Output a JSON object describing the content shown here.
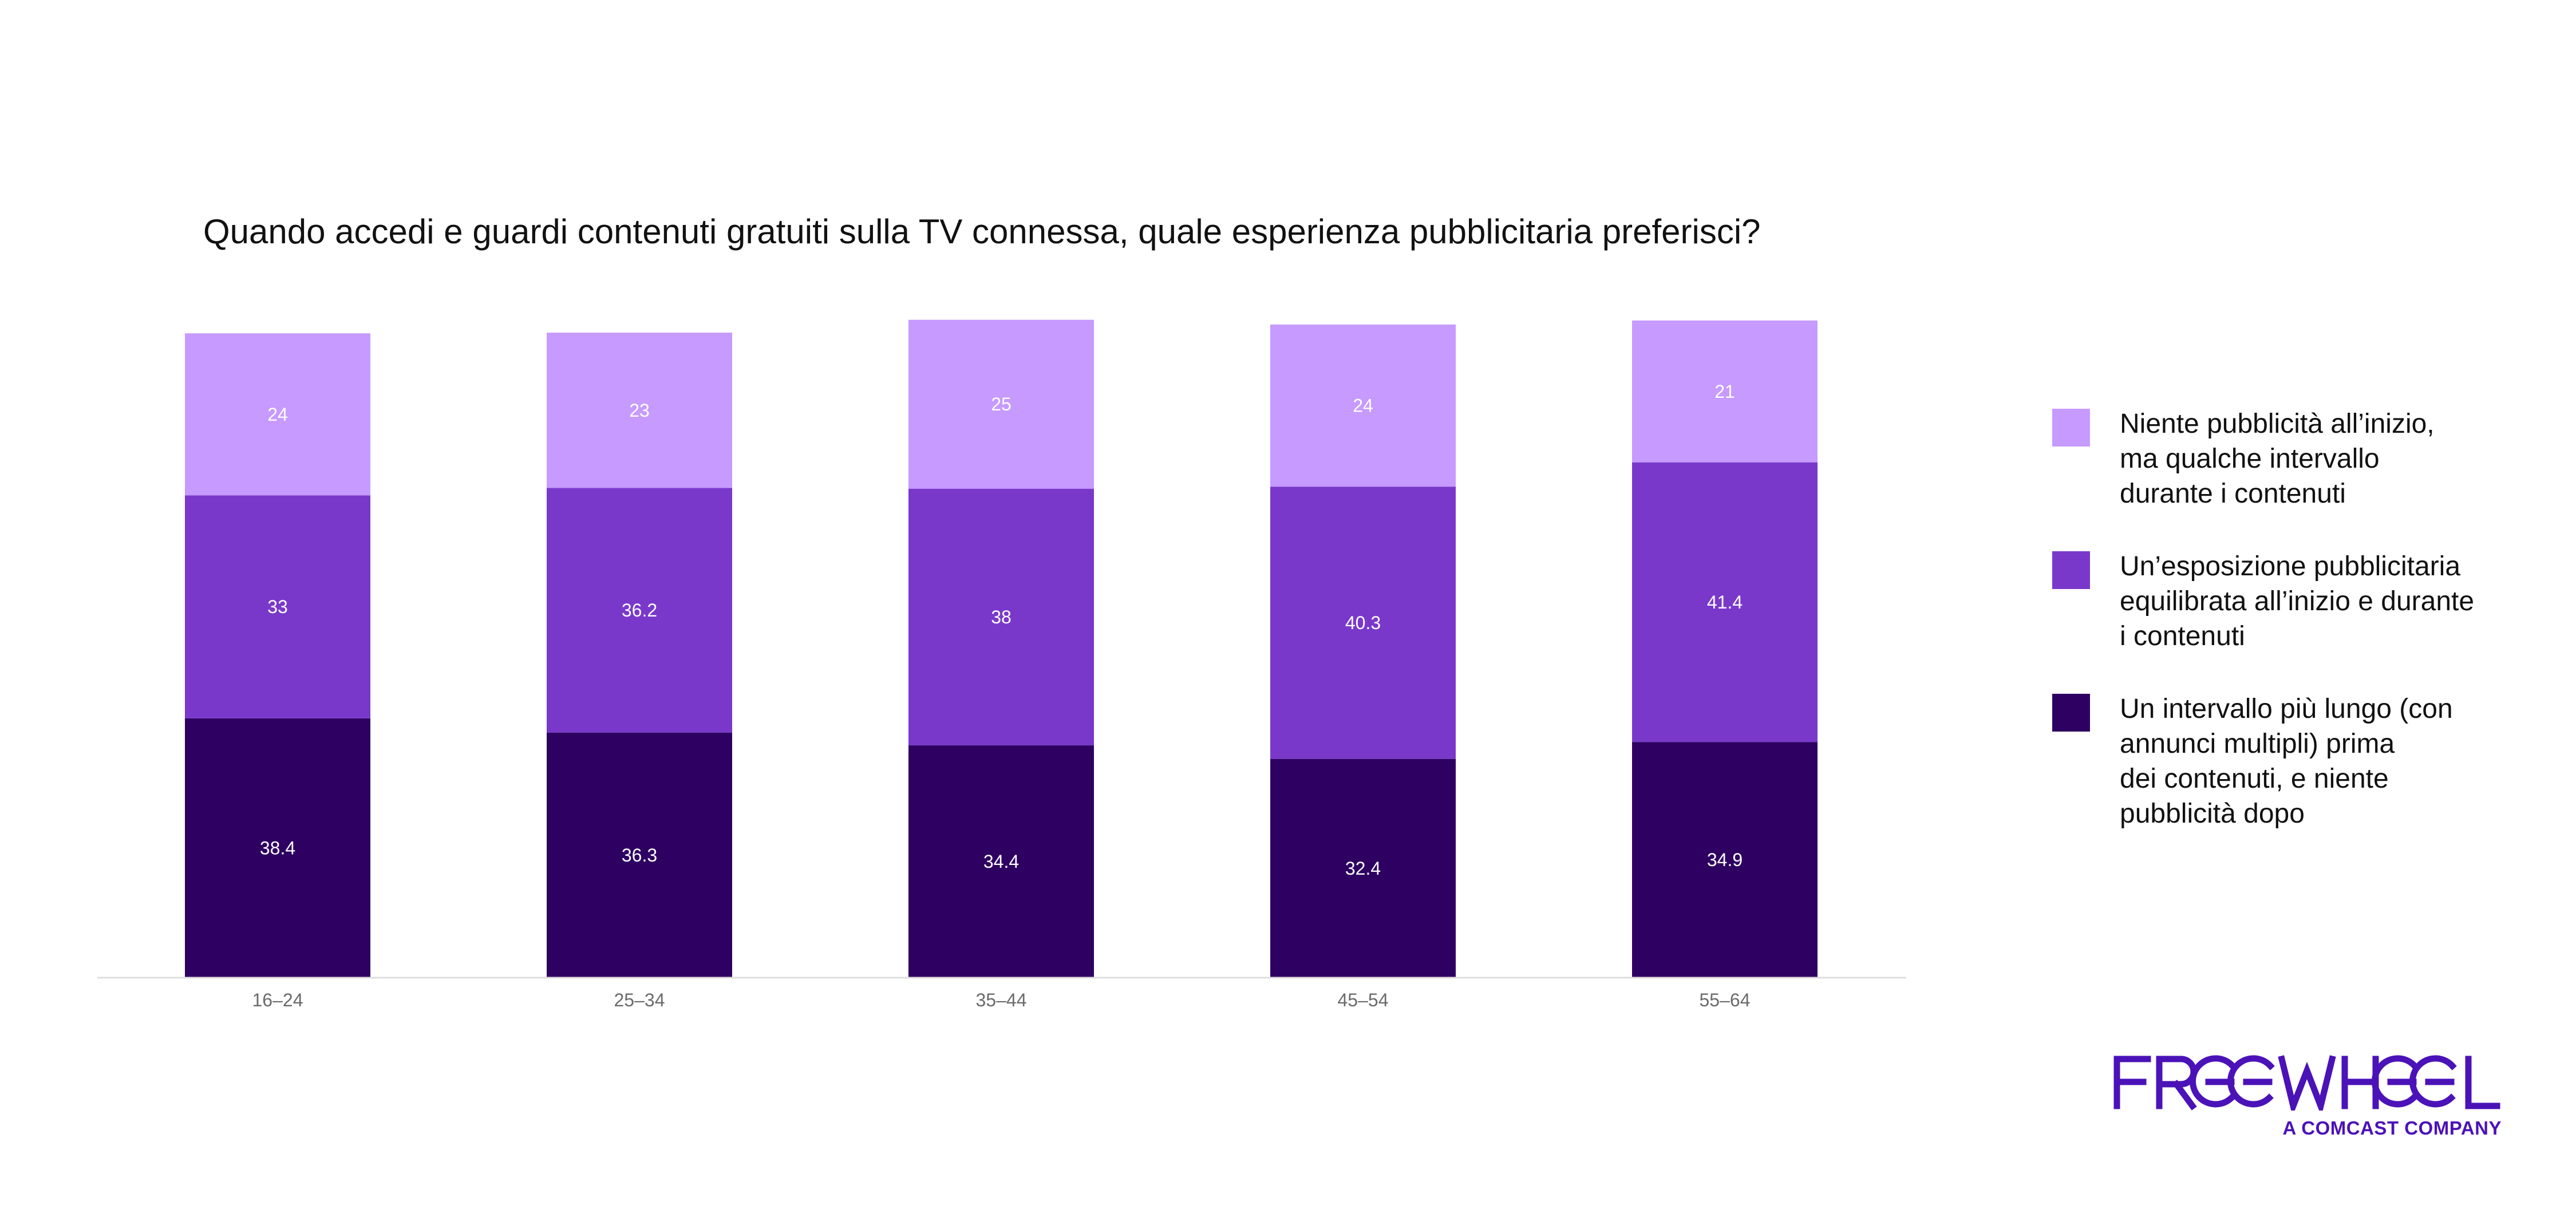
{
  "chart_data": {
    "type": "bar",
    "stacked": true,
    "title": "Quando accedi e guardi contenuti gratuiti sulla TV connessa, quale esperienza pubblicitaria preferisci?",
    "categories": [
      "16–24",
      "25–34",
      "35–44",
      "45–54",
      "55–64"
    ],
    "series": [
      {
        "name": "Un intervallo più lungo (con\nannunci multipli) prima\ndei contenuti, e niente\npubblicità dopo",
        "color": "#2d0062",
        "values": [
          38.4,
          36.3,
          34.4,
          32.4,
          34.9
        ]
      },
      {
        "name": "Un’esposizione pubblicitaria\nequilibrata all’inizio e durante\ni contenuti",
        "color": "#7a38cb",
        "values": [
          33,
          36.2,
          38,
          40.3,
          41.4
        ]
      },
      {
        "name": "Niente pubblicità all’inizio,\nma qualche intervallo\ndurante i contenuti",
        "color": "#c69aff",
        "values": [
          24,
          23,
          25,
          24,
          21
        ]
      }
    ],
    "ylim": [
      0,
      100
    ],
    "grid": false,
    "legend": "right"
  },
  "logo": {
    "name": "FREEWHEEL",
    "tagline": "A COMCAST COMPANY",
    "color": "#4b12b8"
  }
}
